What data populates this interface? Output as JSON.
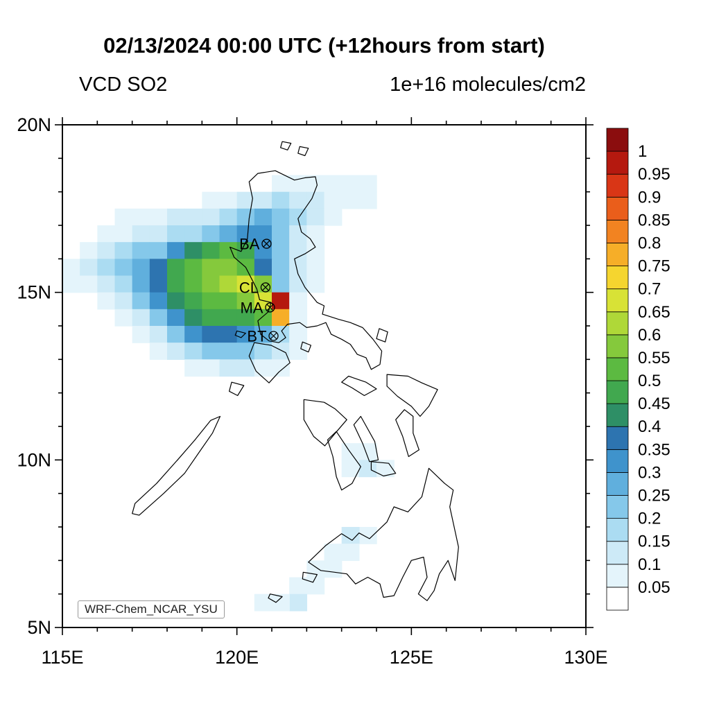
{
  "title": "02/13/2024 00:00 UTC (+12hours from start)",
  "subtitle_left": "VCD SO2",
  "subtitle_right": "1e+16 molecules/cm2",
  "model_label": "WRF-Chem_NCAR_YSU",
  "axes": {
    "lon_min": 115,
    "lon_max": 130,
    "lat_min": 5,
    "lat_max": 20,
    "minor_tick_step": 1,
    "x_tick_labels": [
      {
        "value": 115,
        "label": "115E"
      },
      {
        "value": 120,
        "label": "120E"
      },
      {
        "value": 125,
        "label": "125E"
      },
      {
        "value": 130,
        "label": "130E"
      }
    ],
    "y_tick_labels": [
      {
        "value": 5,
        "label": "5N"
      },
      {
        "value": 10,
        "label": "10N"
      },
      {
        "value": 15,
        "label": "15N"
      },
      {
        "value": 20,
        "label": "20N"
      }
    ]
  },
  "colorbar": {
    "below_color": "#FFFFFF",
    "labels": [
      "0.05",
      "0.1",
      "0.15",
      "0.2",
      "0.25",
      "0.3",
      "0.35",
      "0.4",
      "0.45",
      "0.5",
      "0.55",
      "0.6",
      "0.65",
      "0.7",
      "0.75",
      "0.8",
      "0.85",
      "0.9",
      "0.95",
      "1"
    ],
    "colors": [
      "#E4F4FB",
      "#CDEAF7",
      "#ABDCF2",
      "#85C8EA",
      "#60AFDD",
      "#3F93CC",
      "#2D74B0",
      "#2E8F66",
      "#41A84F",
      "#5CBA41",
      "#85C93C",
      "#AFD838",
      "#D8E236",
      "#F5D52F",
      "#F6AE28",
      "#F28321",
      "#EA5E1B",
      "#D93616",
      "#B5190F",
      "#8B0D0E"
    ]
  },
  "stations": [
    {
      "id": "BA",
      "lon": 120.85,
      "lat": 16.45
    },
    {
      "id": "CL",
      "lon": 120.82,
      "lat": 15.15
    },
    {
      "id": "MA",
      "lon": 120.95,
      "lat": 14.55
    },
    {
      "id": "BT",
      "lon": 121.05,
      "lat": 13.7
    }
  ],
  "chart_data": {
    "type": "heatmap",
    "title": "VCD SO2",
    "units": "1e+16 molecules/cm2",
    "xlabel": "longitude (E)",
    "ylabel": "latitude (N)",
    "xlim": [
      115,
      130
    ],
    "ylim": [
      5,
      20
    ],
    "levels": [
      0.05,
      0.1,
      0.15,
      0.2,
      0.25,
      0.3,
      0.35,
      0.4,
      0.45,
      0.5,
      0.55,
      0.6,
      0.65,
      0.7,
      0.75,
      0.8,
      0.85,
      0.9,
      0.95,
      1.0
    ],
    "grid": {
      "lon0": 115.0,
      "lat_top": 18.5,
      "dlon": 0.5,
      "dlat": 0.5,
      "note": "values are level indices: 1 = 0.05-0.1 ... 19 = 0.95-1.0, 0 = below 0.05",
      "rows": [
        [
          0,
          0,
          0,
          0,
          0,
          0,
          0,
          0,
          0,
          0,
          0,
          0,
          1,
          1,
          1,
          1,
          1,
          1
        ],
        [
          0,
          0,
          0,
          0,
          0,
          0,
          0,
          0,
          1,
          1,
          2,
          2,
          3,
          2,
          2,
          1,
          1,
          1
        ],
        [
          0,
          0,
          0,
          1,
          1,
          1,
          2,
          2,
          2,
          3,
          4,
          5,
          4,
          3,
          2,
          1,
          0,
          0
        ],
        [
          0,
          0,
          1,
          1,
          2,
          2,
          3,
          3,
          4,
          5,
          6,
          6,
          4,
          2,
          1,
          0,
          0,
          0
        ],
        [
          0,
          1,
          2,
          3,
          4,
          4,
          6,
          8,
          9,
          10,
          9,
          6,
          4,
          2,
          1,
          0,
          0,
          0
        ],
        [
          1,
          2,
          3,
          4,
          5,
          7,
          9,
          10,
          11,
          11,
          10,
          7,
          4,
          2,
          1,
          0,
          0,
          0
        ],
        [
          1,
          1,
          2,
          3,
          5,
          7,
          9,
          10,
          11,
          12,
          13,
          11,
          4,
          2,
          1,
          0,
          0,
          0
        ],
        [
          0,
          0,
          1,
          2,
          4,
          6,
          8,
          9,
          10,
          10,
          11,
          13,
          19,
          1,
          0,
          0,
          0,
          0
        ],
        [
          0,
          0,
          0,
          1,
          2,
          4,
          6,
          8,
          9,
          9,
          9,
          10,
          15,
          1,
          0,
          0,
          0,
          0
        ],
        [
          0,
          0,
          0,
          0,
          1,
          2,
          4,
          6,
          7,
          7,
          6,
          5,
          3,
          1,
          0,
          0,
          0,
          0
        ],
        [
          0,
          0,
          0,
          0,
          0,
          1,
          2,
          3,
          4,
          4,
          4,
          3,
          2,
          1,
          0,
          0,
          0,
          0
        ],
        [
          0,
          0,
          0,
          0,
          0,
          0,
          0,
          1,
          1,
          2,
          2,
          1,
          1,
          0,
          0,
          0,
          0,
          0
        ]
      ]
    },
    "extra_cells": [
      [
        123.0,
        10.0,
        1
      ],
      [
        123.5,
        10.0,
        1
      ],
      [
        123.0,
        9.5,
        1
      ],
      [
        123.5,
        9.5,
        2
      ],
      [
        124.0,
        9.5,
        1
      ],
      [
        123.5,
        7.5,
        1
      ],
      [
        123.0,
        7.5,
        2
      ],
      [
        123.0,
        7.0,
        1
      ],
      [
        122.5,
        7.0,
        1
      ],
      [
        122.5,
        6.5,
        1
      ],
      [
        122.0,
        6.5,
        1
      ],
      [
        122.0,
        6.0,
        1
      ],
      [
        121.5,
        6.0,
        1
      ],
      [
        121.5,
        5.5,
        2
      ],
      [
        121.0,
        5.5,
        1
      ],
      [
        120.5,
        5.5,
        1
      ]
    ]
  },
  "map": {
    "islands": [
      {
        "name": "luzon",
        "pts": [
          [
            120.35,
            18.3
          ],
          [
            120.6,
            18.55
          ],
          [
            121.1,
            18.63
          ],
          [
            121.65,
            18.35
          ],
          [
            121.95,
            18.42
          ],
          [
            122.25,
            18.45
          ],
          [
            122.3,
            18.2
          ],
          [
            122.15,
            17.8
          ],
          [
            121.75,
            17.2
          ],
          [
            121.85,
            16.8
          ],
          [
            122.1,
            16.6
          ],
          [
            122.25,
            16.35
          ],
          [
            121.95,
            16.15
          ],
          [
            121.65,
            16.0
          ],
          [
            121.75,
            15.55
          ],
          [
            121.95,
            15.15
          ],
          [
            122.3,
            14.7
          ],
          [
            122.5,
            14.6
          ],
          [
            122.45,
            14.35
          ],
          [
            122.9,
            14.2
          ],
          [
            123.25,
            14.1
          ],
          [
            123.6,
            13.95
          ],
          [
            123.9,
            13.6
          ],
          [
            124.15,
            13.25
          ],
          [
            124.1,
            12.85
          ],
          [
            123.85,
            12.7
          ],
          [
            123.7,
            13.05
          ],
          [
            123.45,
            13.15
          ],
          [
            123.25,
            13.45
          ],
          [
            123.0,
            13.6
          ],
          [
            122.7,
            13.75
          ],
          [
            122.55,
            14.1
          ],
          [
            122.3,
            14.0
          ],
          [
            122.0,
            13.95
          ],
          [
            121.8,
            14.1
          ],
          [
            121.45,
            14.05
          ],
          [
            121.28,
            13.85
          ],
          [
            121.4,
            13.65
          ],
          [
            121.2,
            13.5
          ],
          [
            120.92,
            13.55
          ],
          [
            120.68,
            13.75
          ],
          [
            120.6,
            14.15
          ],
          [
            120.9,
            14.42
          ],
          [
            120.98,
            14.7
          ],
          [
            120.65,
            14.78
          ],
          [
            120.57,
            15.1
          ],
          [
            120.25,
            15.75
          ],
          [
            119.92,
            16.05
          ],
          [
            119.8,
            16.35
          ],
          [
            120.12,
            16.22
          ],
          [
            120.3,
            16.6
          ],
          [
            120.35,
            17.2
          ],
          [
            120.45,
            17.8
          ]
        ]
      },
      {
        "name": "mindoro",
        "pts": [
          [
            120.5,
            13.5
          ],
          [
            120.98,
            13.42
          ],
          [
            121.4,
            13.2
          ],
          [
            121.52,
            12.9
          ],
          [
            121.2,
            12.62
          ],
          [
            120.92,
            12.3
          ],
          [
            120.55,
            12.65
          ],
          [
            120.35,
            13.1
          ]
        ]
      },
      {
        "name": "marinduque",
        "pts": [
          [
            121.88,
            13.52
          ],
          [
            122.12,
            13.42
          ],
          [
            122.05,
            13.22
          ],
          [
            121.83,
            13.32
          ]
        ]
      },
      {
        "name": "catanduanes",
        "pts": [
          [
            124.08,
            13.92
          ],
          [
            124.32,
            13.82
          ],
          [
            124.25,
            13.52
          ],
          [
            124.0,
            13.62
          ]
        ]
      },
      {
        "name": "masbate",
        "pts": [
          [
            123.2,
            12.5
          ],
          [
            123.7,
            12.32
          ],
          [
            124.0,
            12.12
          ],
          [
            123.65,
            11.92
          ],
          [
            123.3,
            12.15
          ],
          [
            123.0,
            12.32
          ]
        ]
      },
      {
        "name": "palawan",
        "pts": [
          [
            117.2,
            8.35
          ],
          [
            117.9,
            9.0
          ],
          [
            118.5,
            9.6
          ],
          [
            119.0,
            10.35
          ],
          [
            119.3,
            10.8
          ],
          [
            119.52,
            11.3
          ],
          [
            119.25,
            11.18
          ],
          [
            118.8,
            10.6
          ],
          [
            118.3,
            10.0
          ],
          [
            117.7,
            9.3
          ],
          [
            117.08,
            8.7
          ],
          [
            117.0,
            8.4
          ]
        ]
      },
      {
        "name": "busuanga",
        "pts": [
          [
            119.85,
            12.32
          ],
          [
            120.2,
            12.22
          ],
          [
            120.02,
            11.92
          ],
          [
            119.78,
            12.05
          ]
        ]
      },
      {
        "name": "lubang",
        "pts": [
          [
            120.0,
            13.85
          ],
          [
            120.25,
            13.78
          ],
          [
            120.12,
            13.65
          ],
          [
            119.95,
            13.72
          ]
        ]
      },
      {
        "name": "panay",
        "pts": [
          [
            121.92,
            11.8
          ],
          [
            122.5,
            11.72
          ],
          [
            122.82,
            11.52
          ],
          [
            123.15,
            11.2
          ],
          [
            122.82,
            10.8
          ],
          [
            122.52,
            10.42
          ],
          [
            122.2,
            10.7
          ],
          [
            121.92,
            11.2
          ]
        ]
      },
      {
        "name": "negros",
        "pts": [
          [
            122.85,
            10.85
          ],
          [
            123.2,
            10.3
          ],
          [
            123.55,
            9.8
          ],
          [
            123.3,
            9.3
          ],
          [
            123.0,
            9.1
          ],
          [
            122.85,
            9.5
          ],
          [
            122.75,
            10.1
          ],
          [
            122.6,
            10.6
          ]
        ]
      },
      {
        "name": "cebu",
        "pts": [
          [
            123.55,
            11.3
          ],
          [
            123.95,
            10.55
          ],
          [
            124.05,
            10.0
          ],
          [
            123.8,
            9.95
          ],
          [
            123.6,
            10.5
          ],
          [
            123.35,
            11.05
          ]
        ]
      },
      {
        "name": "bohol",
        "pts": [
          [
            123.85,
            9.95
          ],
          [
            124.35,
            9.9
          ],
          [
            124.55,
            9.6
          ],
          [
            124.2,
            9.52
          ],
          [
            123.85,
            9.7
          ]
        ]
      },
      {
        "name": "leyte",
        "pts": [
          [
            124.8,
            11.5
          ],
          [
            125.05,
            11.3
          ],
          [
            125.05,
            10.8
          ],
          [
            125.22,
            10.3
          ],
          [
            124.92,
            10.1
          ],
          [
            124.75,
            10.7
          ],
          [
            124.55,
            11.2
          ]
        ]
      },
      {
        "name": "samar",
        "pts": [
          [
            124.3,
            12.55
          ],
          [
            124.9,
            12.5
          ],
          [
            125.3,
            12.3
          ],
          [
            125.75,
            12.1
          ],
          [
            125.5,
            11.6
          ],
          [
            125.25,
            11.3
          ],
          [
            125.0,
            11.6
          ],
          [
            124.6,
            11.9
          ],
          [
            124.3,
            12.2
          ]
        ]
      },
      {
        "name": "mindanao",
        "pts": [
          [
            122.05,
            6.95
          ],
          [
            122.55,
            7.45
          ],
          [
            123.0,
            7.8
          ],
          [
            123.3,
            7.6
          ],
          [
            123.5,
            7.82
          ],
          [
            123.8,
            7.65
          ],
          [
            124.3,
            8.15
          ],
          [
            124.5,
            8.6
          ],
          [
            124.9,
            8.45
          ],
          [
            125.3,
            8.9
          ],
          [
            125.5,
            9.75
          ],
          [
            125.95,
            9.3
          ],
          [
            126.2,
            9.1
          ],
          [
            126.1,
            8.6
          ],
          [
            126.35,
            7.4
          ],
          [
            126.25,
            6.4
          ],
          [
            126.05,
            7.0
          ],
          [
            125.8,
            6.6
          ],
          [
            125.65,
            6.1
          ],
          [
            125.45,
            5.8
          ],
          [
            125.2,
            6.0
          ],
          [
            125.45,
            6.5
          ],
          [
            125.35,
            7.1
          ],
          [
            125.0,
            7.0
          ],
          [
            124.75,
            6.5
          ],
          [
            124.5,
            5.95
          ],
          [
            124.2,
            5.9
          ],
          [
            124.1,
            6.3
          ],
          [
            123.75,
            6.5
          ],
          [
            123.4,
            6.3
          ],
          [
            123.15,
            6.6
          ],
          [
            122.8,
            6.65
          ],
          [
            122.4,
            6.7
          ]
        ]
      },
      {
        "name": "basilan",
        "pts": [
          [
            121.9,
            6.65
          ],
          [
            122.3,
            6.58
          ],
          [
            122.18,
            6.35
          ],
          [
            121.88,
            6.45
          ]
        ]
      },
      {
        "name": "jolo",
        "pts": [
          [
            120.95,
            6.0
          ],
          [
            121.3,
            5.92
          ],
          [
            121.12,
            5.75
          ],
          [
            120.9,
            5.88
          ]
        ]
      },
      {
        "name": "babuyan-1",
        "pts": [
          [
            121.3,
            19.5
          ],
          [
            121.55,
            19.45
          ],
          [
            121.45,
            19.25
          ],
          [
            121.25,
            19.32
          ]
        ]
      },
      {
        "name": "babuyan-2",
        "pts": [
          [
            121.8,
            19.35
          ],
          [
            122.05,
            19.3
          ],
          [
            121.95,
            19.08
          ],
          [
            121.75,
            19.15
          ]
        ]
      }
    ]
  }
}
